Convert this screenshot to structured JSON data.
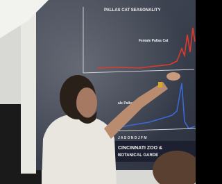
{
  "screen": {
    "title": "PALLAS CAT SEASONALITY",
    "labels": [
      "Female Pallas Cat",
      "ale Pallas Cat"
    ],
    "months": "J A S O N D J F M",
    "logo": [
      "CINCINNATI ZOO &",
      "BOTANICAL GARDE"
    ]
  }
}
